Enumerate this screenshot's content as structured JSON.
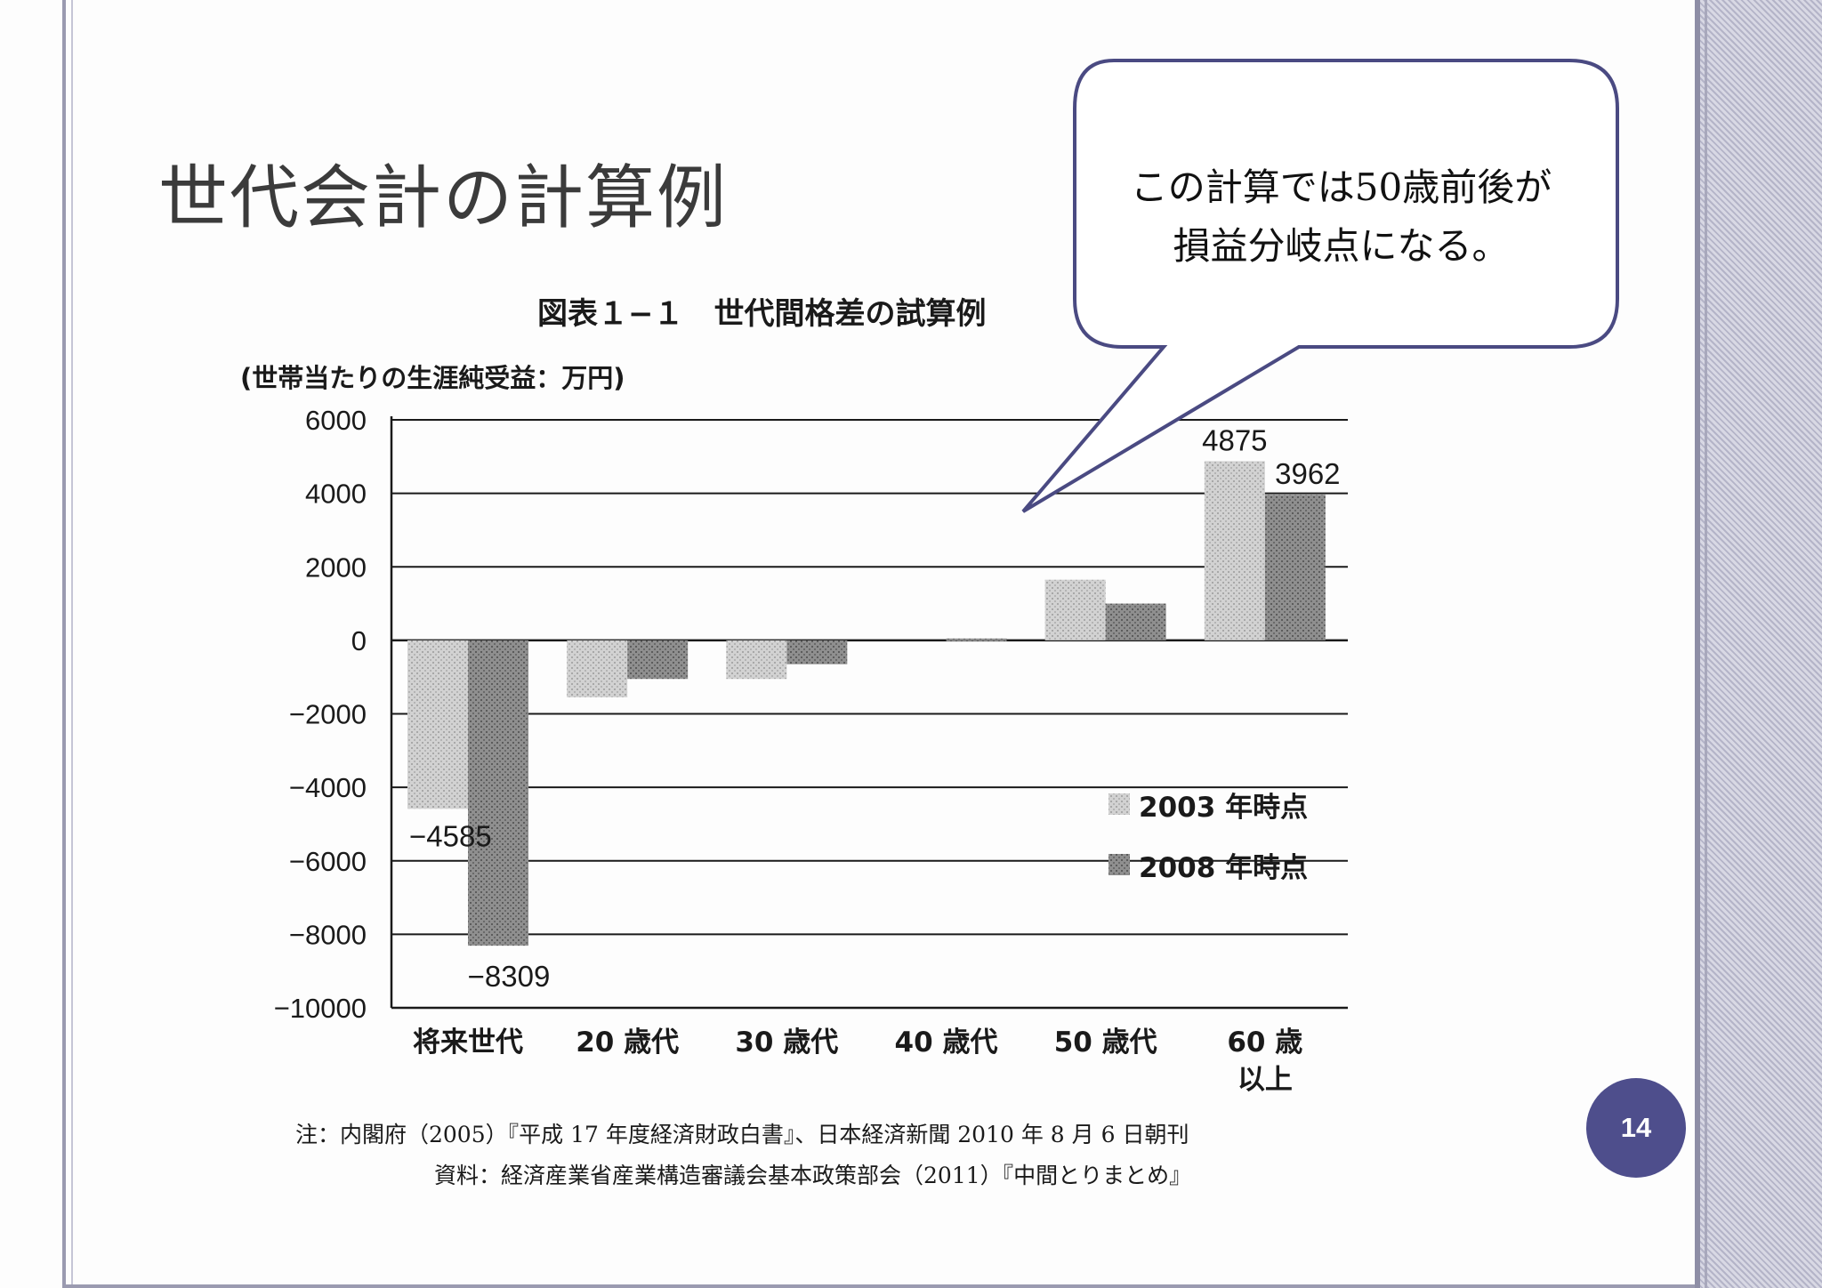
{
  "slide": {
    "title": "世代会計の計算例",
    "page_number": "14",
    "callout_line1": "この計算では50歳前後が",
    "callout_line2": "損益分岐点になる。"
  },
  "chart_data": {
    "type": "bar",
    "title": "図表１−１　世代間格差の試算例",
    "ylabel": "(世帯当たりの生涯純受益：万円)",
    "ylim": [
      -10000,
      6000
    ],
    "yticks": [
      "6000",
      "4000",
      "2000",
      "0",
      "−2000",
      "−4000",
      "−6000",
      "−8000",
      "−10000"
    ],
    "ytick_values": [
      6000,
      4000,
      2000,
      0,
      -2000,
      -4000,
      -6000,
      -8000,
      -10000
    ],
    "categories": [
      "将来世代",
      "20 歳代",
      "30 歳代",
      "40 歳代",
      "50 歳代",
      "60 歳\n以上"
    ],
    "series": [
      {
        "name": "2003 年時点",
        "values": [
          -4585,
          -1550,
          -1050,
          0,
          1650,
          4875
        ],
        "color": "#c9c9c9"
      },
      {
        "name": "2008 年時点",
        "values": [
          -8309,
          -1050,
          -650,
          50,
          1000,
          3962
        ],
        "color": "#8b8b8b"
      }
    ],
    "data_labels": [
      {
        "series": 0,
        "category": 0,
        "text": "−4585"
      },
      {
        "series": 1,
        "category": 0,
        "text": "−8309"
      },
      {
        "series": 0,
        "category": 5,
        "text": "4875"
      },
      {
        "series": 1,
        "category": 5,
        "text": "3962"
      }
    ],
    "grid": true,
    "legend_position": "bottom-right",
    "notes": [
      "注：内閣府（2005）『平成 17 年度経済財政白書』、日本経済新聞 2010 年 8 月 6 日朝刊",
      "資料：経済産業省産業構造審議会基本政策部会（2011）『中間とりまとめ』"
    ]
  }
}
